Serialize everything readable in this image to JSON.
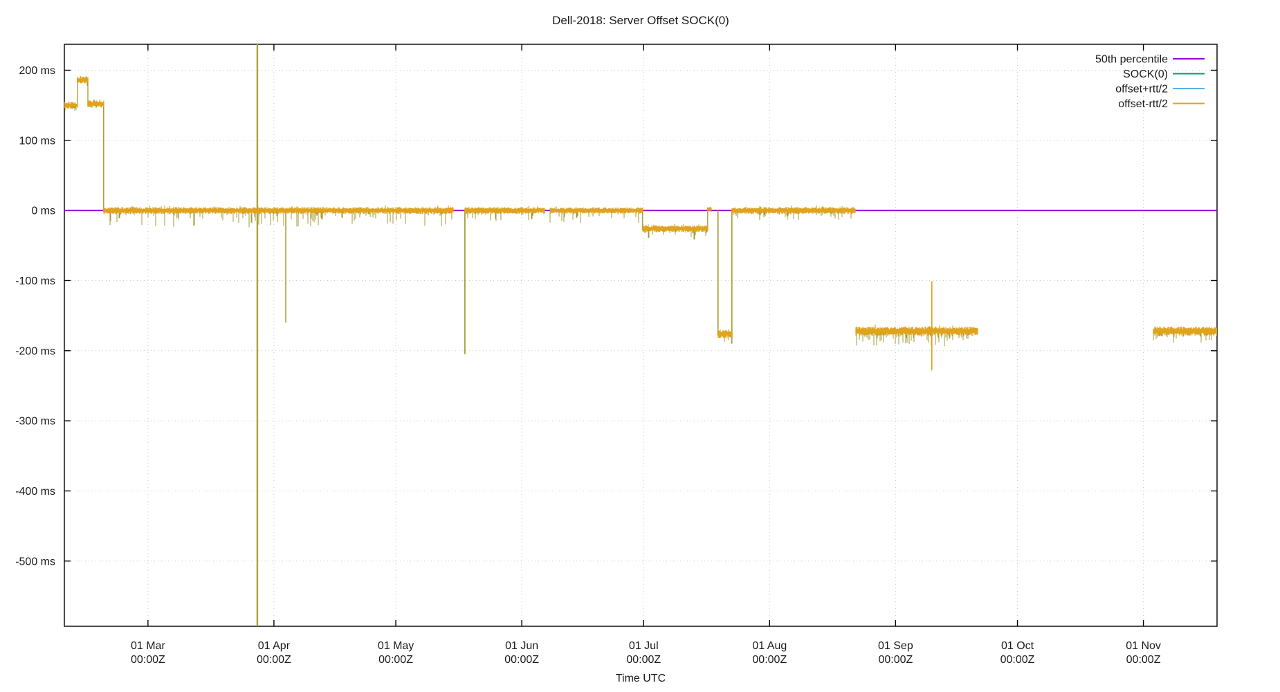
{
  "title": "Dell-2018: Server Offset SOCK(0)",
  "chart_data": {
    "type": "line",
    "title": "Dell-2018: Server Offset SOCK(0)",
    "xlabel": "Time UTC",
    "ylabel": "",
    "x_start": "2018-02-08T10:00:00Z",
    "x_end": "2018-11-19T03:00:00Z",
    "ylim_ms": [
      -593,
      237
    ],
    "grid": true,
    "grid_color": "#c8c8c8",
    "border_color": "#000000",
    "y_ticks": [
      {
        "value_ms": 200,
        "label": "200 ms"
      },
      {
        "value_ms": 100,
        "label": "100 ms"
      },
      {
        "value_ms": 0,
        "label": "0 ms"
      },
      {
        "value_ms": -100,
        "label": "-100 ms"
      },
      {
        "value_ms": -200,
        "label": "-200 ms"
      },
      {
        "value_ms": -300,
        "label": "-300 ms"
      },
      {
        "value_ms": -400,
        "label": "-400 ms"
      },
      {
        "value_ms": -500,
        "label": "-500 ms"
      }
    ],
    "x_ticks": [
      {
        "date": "2018-03-01T00:00:00Z",
        "label_line1": "01 Mar",
        "label_line2": "00:00Z"
      },
      {
        "date": "2018-04-01T00:00:00Z",
        "label_line1": "01 Apr",
        "label_line2": "00:00Z"
      },
      {
        "date": "2018-05-01T00:00:00Z",
        "label_line1": "01 May",
        "label_line2": "00:00Z"
      },
      {
        "date": "2018-06-01T00:00:00Z",
        "label_line1": "01 Jun",
        "label_line2": "00:00Z"
      },
      {
        "date": "2018-07-01T00:00:00Z",
        "label_line1": "01 Jul",
        "label_line2": "00:00Z"
      },
      {
        "date": "2018-08-01T00:00:00Z",
        "label_line1": "01 Aug",
        "label_line2": "00:00Z"
      },
      {
        "date": "2018-09-01T00:00:00Z",
        "label_line1": "01 Sep",
        "label_line2": "00:00Z"
      },
      {
        "date": "2018-10-01T00:00:00Z",
        "label_line1": "01 Oct",
        "label_line2": "00:00Z"
      },
      {
        "date": "2018-11-01T00:00:00Z",
        "label_line1": "01 Nov",
        "label_line2": "00:00Z"
      }
    ],
    "legend": {
      "position": "top-right-inside",
      "entries": [
        {
          "label": "50th percentile",
          "color": "#9400d3"
        },
        {
          "label": "SOCK(0)",
          "color": "#009e73"
        },
        {
          "label": "offset+rtt/2",
          "color": "#56b4e9"
        },
        {
          "label": "offset-rtt/2",
          "color": "#dfa31d"
        }
      ]
    },
    "percentile_line": {
      "label": "50th percentile",
      "value_ms": 0,
      "color": "#9400d3"
    },
    "colors": {
      "band_core": "#dfa31d",
      "band_hairs": "#a39a33",
      "spike_olive": "#a8a136"
    },
    "band_segments": [
      {
        "start": "2018-02-08T10:00:00Z",
        "end": "2018-02-11T15:00:00Z",
        "level_ms": 150,
        "noise_ms": 5,
        "hairs_down_ms": 9,
        "hairs_up_ms": 7,
        "hair_density": 0.45
      },
      {
        "start": "2018-02-11T15:00:00Z",
        "end": "2018-02-14T05:00:00Z",
        "level_ms": 186,
        "noise_ms": 5,
        "hairs_down_ms": 9,
        "hairs_up_ms": 7,
        "hair_density": 0.45
      },
      {
        "start": "2018-02-14T05:00:00Z",
        "end": "2018-02-18T02:00:00Z",
        "level_ms": 152,
        "noise_ms": 5,
        "hairs_down_ms": 9,
        "hairs_up_ms": 7,
        "hair_density": 0.45
      },
      {
        "start": "2018-02-18T02:00:00Z",
        "end": "2018-05-15T02:00:00Z",
        "level_ms": 0,
        "noise_ms": 5,
        "hairs_down_ms": 24,
        "hairs_up_ms": 3,
        "hair_density": 0.3
      },
      {
        "start": "2018-05-18T00:00:00Z",
        "end": "2018-06-06T14:00:00Z",
        "level_ms": 0,
        "noise_ms": 5,
        "hairs_down_ms": 16,
        "hairs_up_ms": 3,
        "hair_density": 0.3
      },
      {
        "start": "2018-06-07T22:00:00Z",
        "end": "2018-06-30T17:00:00Z",
        "level_ms": 0,
        "noise_ms": 4.5,
        "hairs_down_ms": 18,
        "hairs_up_ms": 3,
        "hair_density": 0.3
      },
      {
        "start": "2018-06-30T17:00:00Z",
        "end": "2018-07-16T18:00:00Z",
        "level_ms": -26,
        "noise_ms": 5,
        "hairs_down_ms": 16,
        "hairs_up_ms": 3,
        "hair_density": 0.35
      },
      {
        "start": "2018-07-16T18:00:00Z",
        "end": "2018-07-17T14:00:00Z",
        "level_ms": 2,
        "noise_ms": 4,
        "hairs_down_ms": 6,
        "hairs_up_ms": 3,
        "hair_density": 0.3
      },
      {
        "start": "2018-07-19T07:00:00Z",
        "end": "2018-07-22T17:00:00Z",
        "level_ms": -176,
        "noise_ms": 6,
        "hairs_down_ms": 12,
        "hairs_up_ms": 3,
        "hair_density": 0.4
      },
      {
        "start": "2018-07-22T17:00:00Z",
        "end": "2018-08-22T00:00:00Z",
        "level_ms": 0,
        "noise_ms": 5,
        "hairs_down_ms": 15,
        "hairs_up_ms": 3,
        "hair_density": 0.3
      },
      {
        "start": "2018-08-22T05:00:00Z",
        "end": "2018-09-21T05:00:00Z",
        "level_ms": -172,
        "noise_ms": 6.5,
        "hairs_down_ms": 22,
        "hairs_up_ms": 4,
        "hair_density": 0.45
      },
      {
        "start": "2018-11-03T10:00:00Z",
        "end": "2018-11-19T03:00:00Z",
        "level_ms": -172,
        "noise_ms": 6.5,
        "hairs_down_ms": 20,
        "hairs_up_ms": 4,
        "hair_density": 0.4
      }
    ],
    "spikes": [
      {
        "date": "2018-02-11T15:00:00Z",
        "from_ms": 147,
        "to_ms": 189,
        "color": "#a8a136",
        "width": 1.4
      },
      {
        "date": "2018-02-14T05:00:00Z",
        "from_ms": 189,
        "to_ms": 149,
        "color": "#a8a136",
        "width": 1.4
      },
      {
        "date": "2018-02-18T02:00:00Z",
        "from_ms": 152,
        "to_ms": -2,
        "color": "#a8a136",
        "width": 1.6
      },
      {
        "date": "2018-03-27T22:00:00Z",
        "from_ms": 237,
        "to_ms": -593,
        "color": "#a8a136",
        "width": 2.4
      },
      {
        "date": "2018-04-03T22:00:00Z",
        "from_ms": 0,
        "to_ms": -160,
        "color": "#a8a136",
        "width": 1.6
      },
      {
        "date": "2018-05-18T00:00:00Z",
        "from_ms": 0,
        "to_ms": -205,
        "color": "#a8a136",
        "width": 1.8
      },
      {
        "date": "2018-06-30T17:00:00Z",
        "from_ms": 0,
        "to_ms": -28,
        "color": "#a8a136",
        "width": 1.4
      },
      {
        "date": "2018-07-16T18:00:00Z",
        "from_ms": -28,
        "to_ms": 4,
        "color": "#a8a136",
        "width": 1.4
      },
      {
        "date": "2018-07-19T07:00:00Z",
        "from_ms": 0,
        "to_ms": -178,
        "color": "#a8a136",
        "width": 1.8
      },
      {
        "date": "2018-07-22T17:00:00Z",
        "from_ms": -190,
        "to_ms": 0,
        "color": "#a8a136",
        "width": 1.8
      },
      {
        "date": "2018-09-09T22:00:00Z",
        "from_ms": -101,
        "to_ms": -228,
        "color": "#dfa31d",
        "width": 1.8,
        "over_band": true
      }
    ]
  }
}
